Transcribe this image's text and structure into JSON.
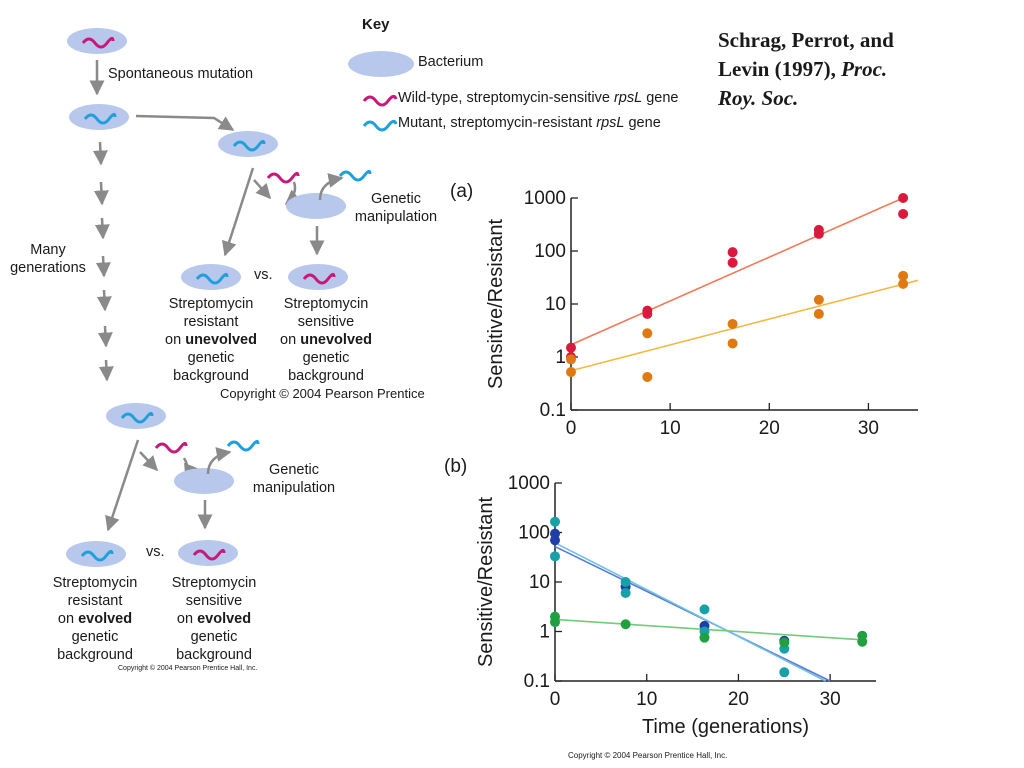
{
  "citation": {
    "authors": "Schrag, Perrot, and",
    "year_line": "Levin (1997),",
    "journal_1": "Proc.",
    "journal_2": "Roy. Soc."
  },
  "key": {
    "title": "Key",
    "items": [
      {
        "label": "Bacterium",
        "icon": "bacterium"
      },
      {
        "label_prefix": "Wild-type, streptomycin-sensitive ",
        "gene": "rpsL",
        "label_suffix": " gene",
        "color": "#c8187a"
      },
      {
        "label_prefix": "Mutant, streptomycin-resistant ",
        "gene": "rpsL",
        "label_suffix": " gene",
        "color": "#1fa0dc"
      }
    ]
  },
  "diagram": {
    "spontaneous_mutation": "Spontaneous mutation",
    "many_generations": [
      "Many",
      "generations"
    ],
    "genetic_manipulation": [
      "Genetic",
      "manipulation"
    ],
    "vs": "vs.",
    "top_resistant": [
      "Streptomycin",
      "resistant",
      "on",
      "unevolved",
      "genetic",
      "background"
    ],
    "top_sensitive": [
      "Streptomycin",
      "sensitive",
      "on",
      "unevolved",
      "genetic",
      "background"
    ],
    "bottom_resistant": [
      "Streptomycin",
      "resistant",
      "on",
      "evolved",
      "genetic",
      "background"
    ],
    "bottom_sensitive": [
      "Streptomycin",
      "sensitive",
      "on",
      "evolved",
      "genetic",
      "background"
    ],
    "copyright_mid": "Copyright © 2004 Pearson Prentice",
    "copyright_bottom_left": "Copyright © 2004 Pearson Prentice Hall, Inc."
  },
  "copyright_bottom_right": "Copyright © 2004 Pearson Prentice Hall, Inc.",
  "colors": {
    "bacterium": "#b8c8ec",
    "wild_type_gene": "#c8187a",
    "mutant_gene": "#1fa0dc",
    "arrow": "#8a8a8a"
  },
  "chart_data": [
    {
      "label": "(a)",
      "type": "scatter",
      "xlabel": "",
      "ylabel": "Sensitive/Resistant",
      "yscale": "log",
      "xlim": [
        0,
        35
      ],
      "ylim": [
        0.1,
        1000
      ],
      "xticks": [
        0,
        10,
        20,
        30
      ],
      "yticks": [
        0.1,
        1,
        10,
        100,
        1000
      ],
      "ytick_labels": [
        "0.1",
        "1",
        "10",
        "100",
        "1000"
      ],
      "grid": false,
      "series": [
        {
          "color": "#d91a3c",
          "line_color": "#f07a5a",
          "points": [
            [
              0,
              1.5
            ],
            [
              0,
              1.0
            ],
            [
              7.7,
              7.5
            ],
            [
              7.7,
              6.5
            ],
            [
              16.3,
              95
            ],
            [
              16.3,
              60
            ],
            [
              25,
              250
            ],
            [
              25,
              210
            ],
            [
              33.5,
              1000
            ],
            [
              33.5,
              500
            ]
          ],
          "fit": [
            [
              0,
              1.7
            ],
            [
              33.5,
              1000
            ]
          ]
        },
        {
          "color": "#e07a10",
          "line_color": "#f5b843",
          "points": [
            [
              0,
              0.9
            ],
            [
              0,
              0.52
            ],
            [
              7.7,
              2.8
            ],
            [
              7.7,
              0.42
            ],
            [
              16.3,
              4.2
            ],
            [
              16.3,
              1.8
            ],
            [
              25,
              12
            ],
            [
              25,
              6.5
            ],
            [
              33.5,
              34
            ],
            [
              33.5,
              24
            ]
          ],
          "fit": [
            [
              0,
              0.55
            ],
            [
              35,
              28
            ]
          ]
        }
      ]
    },
    {
      "label": "(b)",
      "type": "scatter",
      "xlabel": "Time (generations)",
      "ylabel": "Sensitive/Resistant",
      "yscale": "log",
      "xlim": [
        0,
        35
      ],
      "ylim": [
        0.1,
        1000
      ],
      "xticks": [
        0,
        10,
        20,
        30
      ],
      "yticks": [
        0.1,
        1,
        10,
        100,
        1000
      ],
      "ytick_labels": [
        "0.1",
        "1",
        "10",
        "100",
        "1000"
      ],
      "grid": false,
      "series": [
        {
          "color": "#1f3fa8",
          "line_color": "#5a7ad0",
          "points": [
            [
              0,
              95
            ],
            [
              0,
              70
            ],
            [
              7.7,
              8
            ],
            [
              16.3,
              1.3
            ],
            [
              25,
              0.65
            ]
          ],
          "fit": [
            [
              0,
              52
            ],
            [
              30,
              0.1
            ]
          ]
        },
        {
          "color": "#17a0a8",
          "line_color": "#6fc0e0",
          "points": [
            [
              0,
              165
            ],
            [
              0,
              33
            ],
            [
              7.7,
              10
            ],
            [
              7.7,
              6
            ],
            [
              16.3,
              2.8
            ],
            [
              16.3,
              1.0
            ],
            [
              25,
              0.45
            ],
            [
              25,
              0.15
            ]
          ],
          "fit": [
            [
              0,
              62
            ],
            [
              29.5,
              0.1
            ]
          ]
        },
        {
          "color": "#20a040",
          "line_color": "#70cc7a",
          "points": [
            [
              0,
              2.0
            ],
            [
              0,
              1.55
            ],
            [
              7.7,
              1.4
            ],
            [
              16.3,
              0.75
            ],
            [
              25,
              0.6
            ],
            [
              33.5,
              0.82
            ],
            [
              33.5,
              0.62
            ]
          ],
          "fit": [
            [
              0,
              1.75
            ],
            [
              33.5,
              0.68
            ]
          ]
        }
      ]
    }
  ]
}
